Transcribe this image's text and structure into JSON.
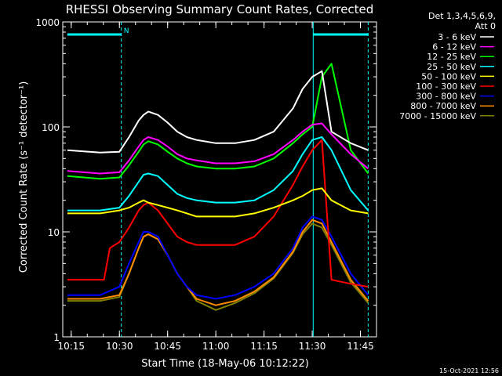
{
  "chart_data": {
    "type": "line",
    "title": "RHESSI Observing Summary Count Rates, Corrected",
    "xlabel": "Start Time (18-May-06 10:12:22)",
    "ylabel": "Corrected Count Rate (s⁻¹ detector⁻¹)",
    "yscale": "log",
    "xlim": [
      10.2061,
      11.8333
    ],
    "ylim": [
      1,
      1000
    ],
    "x_ticks": [
      10.25,
      10.5,
      10.75,
      11.0,
      11.25,
      11.5,
      11.75
    ],
    "x_tick_labels": [
      "10:15",
      "10:30",
      "10:45",
      "11:00",
      "11:15",
      "11:30",
      "11:45"
    ],
    "y_ticks": [
      1,
      10,
      100,
      1000
    ],
    "y_tick_labels": [
      "1",
      "10",
      "100",
      "1000"
    ],
    "grid": false,
    "legend_position": "right",
    "legend_header": [
      "Det 1,3,4,5,6,9,",
      "Att 0"
    ],
    "footer_date": "15-Oct-2021 12:56",
    "annotations": [
      {
        "text": "N",
        "color": "#00ffff"
      }
    ],
    "vertical_markers": [
      {
        "x": 10.51,
        "color": "#00ffff",
        "style": "dashed"
      },
      {
        "x": 11.505,
        "color": "#00ffff",
        "style": "solid"
      },
      {
        "x": 11.79,
        "color": "#00ffff",
        "style": "dashed"
      }
    ],
    "flags": [
      {
        "name": "night",
        "x_start": 10.23,
        "x_end": 10.51,
        "level": 760,
        "color": "#00ffff"
      },
      {
        "name": "night",
        "x_start": 11.505,
        "x_end": 11.79,
        "level": 760,
        "color": "#00ffff"
      }
    ],
    "series": [
      {
        "name": "3 - 6 keV",
        "color": "#ffffff",
        "x": [
          10.23,
          10.4,
          10.5,
          10.55,
          10.6,
          10.625,
          10.65,
          10.7,
          10.75,
          10.8,
          10.85,
          10.9,
          11.0,
          11.1,
          11.2,
          11.3,
          11.4,
          11.45,
          11.5,
          11.55,
          11.6,
          11.7,
          11.79
        ],
        "y": [
          60,
          57,
          58,
          80,
          115,
          130,
          140,
          130,
          110,
          90,
          80,
          75,
          70,
          70,
          75,
          90,
          150,
          230,
          300,
          340,
          90,
          70,
          60
        ]
      },
      {
        "name": "6 - 12 keV",
        "color": "#ff00ff",
        "x": [
          10.23,
          10.4,
          10.5,
          10.55,
          10.6,
          10.625,
          10.65,
          10.7,
          10.75,
          10.8,
          10.85,
          10.9,
          11.0,
          11.1,
          11.2,
          11.3,
          11.4,
          11.45,
          11.5,
          11.55,
          11.6,
          11.7,
          11.79
        ],
        "y": [
          38,
          36,
          37,
          48,
          65,
          75,
          80,
          75,
          65,
          55,
          50,
          48,
          45,
          45,
          47,
          55,
          75,
          90,
          105,
          108,
          85,
          55,
          40
        ]
      },
      {
        "name": "12 - 25 keV",
        "color": "#00ff00",
        "x": [
          10.23,
          10.4,
          10.5,
          10.55,
          10.6,
          10.625,
          10.65,
          10.7,
          10.75,
          10.8,
          10.85,
          10.9,
          11.0,
          11.1,
          11.2,
          11.3,
          11.4,
          11.45,
          11.5,
          11.55,
          11.6,
          11.7,
          11.79
        ],
        "y": [
          34,
          32,
          33,
          43,
          58,
          68,
          73,
          68,
          58,
          50,
          45,
          42,
          40,
          40,
          42,
          50,
          70,
          85,
          100,
          300,
          400,
          60,
          36
        ]
      },
      {
        "name": "25 - 50 keV",
        "color": "#00ffff",
        "x": [
          10.23,
          10.4,
          10.5,
          10.55,
          10.6,
          10.625,
          10.65,
          10.7,
          10.75,
          10.8,
          10.85,
          10.9,
          11.0,
          11.1,
          11.2,
          11.3,
          11.4,
          11.45,
          11.5,
          11.55,
          11.6,
          11.7,
          11.79
        ],
        "y": [
          16,
          16,
          17,
          22,
          30,
          35,
          36,
          34,
          28,
          23,
          21,
          20,
          19,
          19,
          20,
          25,
          38,
          55,
          75,
          80,
          60,
          25,
          16
        ]
      },
      {
        "name": "50 - 100 keV",
        "color": "#ffff00",
        "x": [
          10.23,
          10.4,
          10.5,
          10.55,
          10.6,
          10.625,
          10.65,
          10.7,
          10.75,
          10.8,
          10.85,
          10.9,
          11.0,
          11.1,
          11.2,
          11.3,
          11.4,
          11.45,
          11.5,
          11.55,
          11.6,
          11.7,
          11.79
        ],
        "y": [
          15,
          15,
          16,
          17,
          19,
          20,
          19,
          18,
          17,
          16,
          15,
          14,
          14,
          14,
          15,
          17,
          20,
          22,
          25,
          26,
          20,
          16,
          15
        ]
      },
      {
        "name": "100 - 300 keV",
        "color": "#ff0000",
        "x": [
          10.23,
          10.42,
          10.45,
          10.5,
          10.55,
          10.6,
          10.625,
          10.65,
          10.7,
          10.75,
          10.8,
          10.85,
          10.9,
          11.0,
          11.1,
          11.2,
          11.3,
          11.4,
          11.45,
          11.5,
          11.55,
          11.6,
          11.7,
          11.79
        ],
        "y": [
          3.5,
          3.5,
          7,
          8,
          11,
          16,
          18,
          19,
          16,
          12,
          9,
          8,
          7.5,
          7.5,
          7.5,
          9,
          14,
          28,
          42,
          60,
          75,
          3.5,
          3.2,
          3
        ]
      },
      {
        "name": "300 - 800 keV",
        "color": "#0000ff",
        "x": [
          10.23,
          10.4,
          10.5,
          10.55,
          10.6,
          10.625,
          10.65,
          10.7,
          10.75,
          10.8,
          10.85,
          10.9,
          11.0,
          11.1,
          11.2,
          11.3,
          11.4,
          11.45,
          11.5,
          11.55,
          11.6,
          11.7,
          11.79
        ],
        "y": [
          2.5,
          2.5,
          3,
          5,
          8,
          10,
          10,
          9,
          6,
          4,
          3,
          2.5,
          2.3,
          2.5,
          3,
          4,
          7,
          11,
          14,
          13,
          9,
          4,
          2.5
        ]
      },
      {
        "name": "800 - 7000 keV",
        "color": "#ff8c00",
        "x": [
          10.23,
          10.4,
          10.5,
          10.55,
          10.6,
          10.625,
          10.65,
          10.7,
          10.75,
          10.8,
          10.85,
          10.9,
          11.0,
          11.1,
          11.2,
          11.3,
          11.4,
          11.45,
          11.5,
          11.55,
          11.6,
          11.7,
          11.79
        ],
        "y": [
          2.3,
          2.3,
          2.5,
          4,
          7,
          9,
          9.5,
          8.5,
          6,
          4,
          3,
          2.3,
          2,
          2.2,
          2.7,
          3.7,
          6.5,
          10,
          13,
          12,
          8,
          3.5,
          2.2
        ]
      },
      {
        "name": "7000 - 15000 keV",
        "color": "#808000",
        "x": [
          10.23,
          10.4,
          10.5,
          10.55,
          10.6,
          10.625,
          10.65,
          10.7,
          10.75,
          10.8,
          10.85,
          10.9,
          11.0,
          11.1,
          11.2,
          11.3,
          11.4,
          11.45,
          11.5,
          11.55,
          11.6,
          11.7,
          11.79
        ],
        "y": [
          2.2,
          2.2,
          2.4,
          4,
          7,
          9,
          9.5,
          8.5,
          6,
          4,
          3,
          2.2,
          1.8,
          2.1,
          2.6,
          3.6,
          6.3,
          9.5,
          12,
          11,
          7.5,
          3.3,
          2.1
        ]
      }
    ]
  }
}
